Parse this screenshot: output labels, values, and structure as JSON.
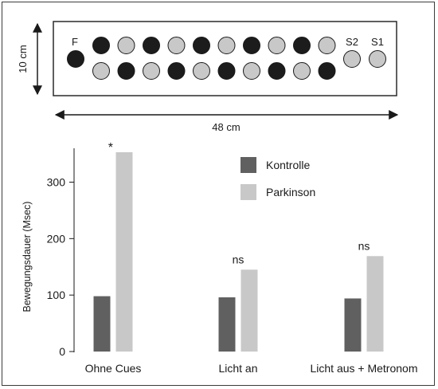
{
  "board": {
    "start_label": "F",
    "sensor_labels": [
      "S2",
      "S1"
    ],
    "height_label": "10 cm",
    "width_label": "48 cm",
    "top_row": [
      "dark",
      "light",
      "dark",
      "light",
      "dark",
      "light",
      "dark",
      "light",
      "dark",
      "light"
    ],
    "bottom_row": [
      "light",
      "dark",
      "light",
      "dark",
      "light",
      "dark",
      "light",
      "dark",
      "light",
      "dark"
    ],
    "colors": {
      "dark": "#1c1c1c",
      "light": "#c8c8c8"
    }
  },
  "chart_data": {
    "type": "bar",
    "ylabel": "Bewegungsdauer (Msec)",
    "ylim": [
      0,
      360
    ],
    "yticks": [
      0,
      100,
      200,
      300
    ],
    "categories": [
      "Ohne Cues",
      "Licht an",
      "Licht aus + Metronom"
    ],
    "series": [
      {
        "name": "Kontrolle",
        "color": "#606060",
        "values": [
          98,
          96,
          94
        ]
      },
      {
        "name": "Parkinson",
        "color": "#c8c8c8",
        "values": [
          353,
          145,
          169
        ]
      }
    ],
    "annotations": [
      "*",
      "ns",
      "ns"
    ],
    "legend_position": "top-center",
    "grid": false
  }
}
